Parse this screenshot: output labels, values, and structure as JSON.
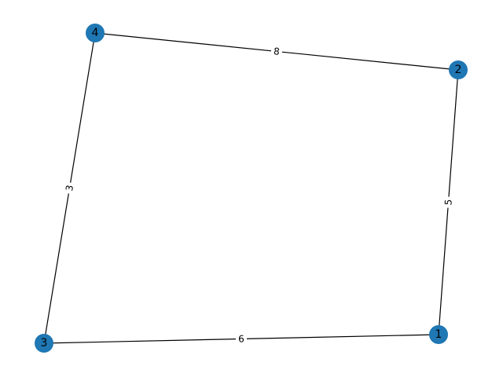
{
  "graph": {
    "node_color": "#1f77b4",
    "edge_color": "#000000",
    "nodes": [
      {
        "id": "1",
        "label": "1"
      },
      {
        "id": "2",
        "label": "2"
      },
      {
        "id": "3",
        "label": "3"
      },
      {
        "id": "4",
        "label": "4"
      }
    ],
    "edges": [
      {
        "source": "1",
        "target": "2",
        "label": "5"
      },
      {
        "source": "1",
        "target": "3",
        "label": "6"
      },
      {
        "source": "2",
        "target": "4",
        "label": "8"
      },
      {
        "source": "3",
        "target": "4",
        "label": "3"
      }
    ]
  }
}
